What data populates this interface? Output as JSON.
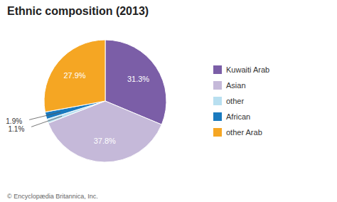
{
  "chart_data": {
    "type": "pie",
    "title": "Ethnic composition (2013)",
    "categories": [
      "Kuwaiti Arab",
      "Asian",
      "other",
      "African",
      "other Arab"
    ],
    "values": [
      31.3,
      37.8,
      1.1,
      1.9,
      27.9
    ],
    "value_labels": [
      "31.3%",
      "37.8%",
      "1.1%",
      "1.9%",
      "27.9%"
    ],
    "colors": [
      "#7b5ea7",
      "#c5b9d9",
      "#b8dff0",
      "#1a7abf",
      "#f5a623"
    ],
    "data_labels": true,
    "legend": "right",
    "annotations": [
      "© Encyclopædia Britannica, Inc."
    ]
  }
}
